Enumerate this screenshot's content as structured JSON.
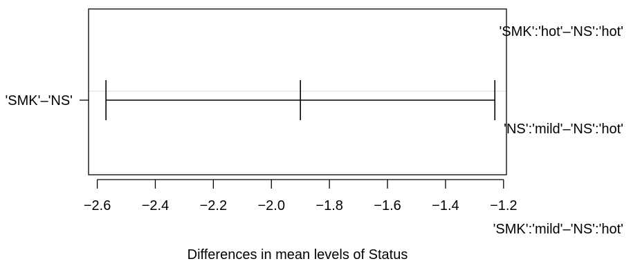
{
  "chart_data": {
    "type": "interval",
    "xlabel": "Differences in mean levels of Status",
    "x_ticks": [
      -2.6,
      -2.4,
      -2.2,
      -2.0,
      -1.8,
      -1.6,
      -1.4,
      -1.2
    ],
    "x_tick_labels": [
      "−2.6",
      "−2.4",
      "−2.2",
      "−2.0",
      "−1.8",
      "−1.6",
      "−1.4",
      "−1.2"
    ],
    "xlim": [
      -2.63,
      -1.19
    ],
    "comparisons": [
      {
        "label": "'SMK'–'NS'",
        "diff": -1.9,
        "lwr": -2.57,
        "upr": -1.23
      }
    ],
    "overlay_labels": [
      "'SMK':'hot'–'NS':'hot'",
      "'NS':'mild'–'NS':'hot'",
      "'SMK':'mild'–'NS':'hot'"
    ]
  }
}
